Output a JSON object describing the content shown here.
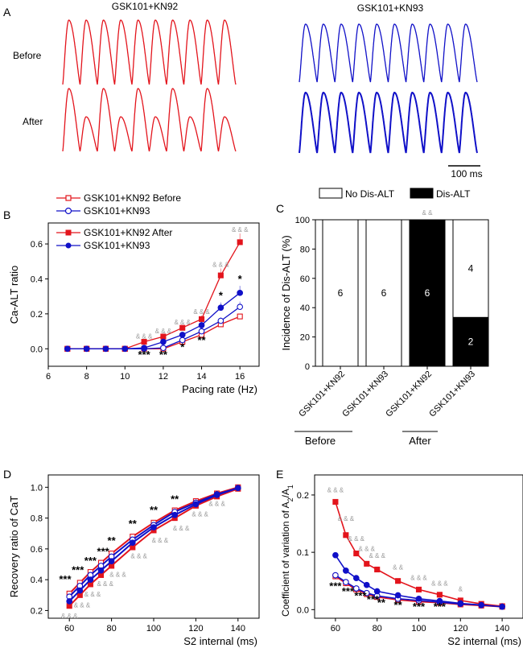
{
  "colors": {
    "red": "#e3141c",
    "blue": "#1010c8",
    "black": "#000000",
    "gray": "#9a9a9a"
  },
  "panels": {
    "a": "A",
    "b": "B",
    "c": "C",
    "d": "D",
    "e": "E"
  },
  "panel_a": {
    "col_red": "GSK101+KN92",
    "col_blue": "GSK101+KN93",
    "row_before": "Before",
    "row_after": "After",
    "scale_label": "100 ms"
  },
  "chart_data": [
    {
      "id": "B",
      "type": "line",
      "xlabel": "Pacing rate (Hz)",
      "ylabel": "Ca-ALT ratio",
      "xlim": [
        6,
        17
      ],
      "ylim": [
        -0.1,
        0.72
      ],
      "xticks": [
        6,
        8,
        10,
        12,
        14,
        16
      ],
      "yticks": [
        0.0,
        0.2,
        0.4,
        0.6
      ],
      "x": [
        7,
        8,
        9,
        10,
        11,
        12,
        13,
        14,
        15,
        16
      ],
      "legend": {
        "group1": "GSK101+KN92 Before",
        "group1b": "GSK101+KN93",
        "group2": "GSK101+KN92 After",
        "group2b": "GSK101+KN93"
      },
      "series": [
        {
          "name": "GSK101+KN92 Before",
          "color": "red",
          "marker": "open-square",
          "values": [
            0,
            0,
            0,
            0,
            0,
            0,
            0.04,
            0.08,
            0.14,
            0.185
          ],
          "errors": [
            0,
            0,
            0,
            0,
            0,
            0,
            0.005,
            0.01,
            0.015,
            0.015
          ]
        },
        {
          "name": "GSK101+KN93",
          "color": "blue",
          "marker": "open-circle",
          "values": [
            0,
            0,
            0,
            0,
            0,
            0.005,
            0.05,
            0.1,
            0.16,
            0.24
          ],
          "errors": [
            0,
            0,
            0,
            0,
            0,
            0.004,
            0.01,
            0.015,
            0.02,
            0.03
          ]
        },
        {
          "name": "GSK101+KN92 After",
          "color": "red",
          "marker": "filled-square",
          "values": [
            0,
            0,
            0,
            0,
            0.04,
            0.07,
            0.12,
            0.17,
            0.42,
            0.61
          ],
          "errors": [
            0,
            0,
            0,
            0,
            0.01,
            0.01,
            0.015,
            0.02,
            0.04,
            0.05
          ]
        },
        {
          "name": "GSK101+KN93",
          "color": "blue",
          "marker": "filled-circle",
          "values": [
            0,
            0,
            0,
            0,
            0.005,
            0.04,
            0.08,
            0.135,
            0.235,
            0.32
          ],
          "errors": [
            0,
            0,
            0,
            0,
            0.004,
            0.01,
            0.015,
            0.02,
            0.03,
            0.04
          ]
        }
      ],
      "annotations": [
        {
          "text": "&&&",
          "x": 11,
          "y": 0.06
        },
        {
          "text": "&&&",
          "x": 12,
          "y": 0.09
        },
        {
          "text": "&&&",
          "x": 13,
          "y": 0.14
        },
        {
          "text": "&&&",
          "x": 14,
          "y": 0.2
        },
        {
          "text": "&&&",
          "x": 15,
          "y": 0.47
        },
        {
          "text": "&&&",
          "x": 16,
          "y": 0.67
        },
        {
          "text": "***",
          "x": 11,
          "y": -0.055
        },
        {
          "text": "**",
          "x": 12,
          "y": -0.055
        },
        {
          "text": "*",
          "x": 13,
          "y": -0.01
        },
        {
          "text": "**",
          "x": 14,
          "y": 0.03
        },
        {
          "text": "*",
          "x": 15,
          "y": 0.285
        },
        {
          "text": "*",
          "x": 16,
          "y": 0.38
        }
      ]
    },
    {
      "id": "C",
      "type": "bar",
      "ylabel": "Incidence of Dis-ALT (%)",
      "ylim": [
        0,
        100
      ],
      "yticks": [
        0,
        20,
        40,
        60,
        80,
        100
      ],
      "categories": [
        "GSK101+KN92",
        "GSK101+KN93",
        "GSK101+KN92",
        "GSK101+KN93"
      ],
      "groups": [
        "Before",
        "After"
      ],
      "legend": {
        "no": "No Dis-ALT",
        "yes": "Dis-ALT"
      },
      "dis_alt_percent": [
        0,
        0,
        100,
        33.3
      ],
      "count_labels": [
        "6",
        "6",
        "6",
        "4",
        "2"
      ],
      "significance": "&&"
    },
    {
      "id": "D",
      "type": "line",
      "xlabel": "S2 internal (ms)",
      "ylabel": "Recovery ratio of CaT",
      "xlim": [
        50,
        150
      ],
      "ylim": [
        0.15,
        1.08
      ],
      "xticks": [
        60,
        80,
        100,
        120,
        140
      ],
      "yticks": [
        0.2,
        0.4,
        0.6,
        0.8,
        1.0
      ],
      "x": [
        60,
        65,
        70,
        75,
        80,
        90,
        100,
        110,
        120,
        130,
        140
      ],
      "series": [
        {
          "name": "GSK101+KN92 Before",
          "color": "red",
          "marker": "open-square",
          "values": [
            0.31,
            0.38,
            0.45,
            0.51,
            0.57,
            0.68,
            0.77,
            0.85,
            0.91,
            0.96,
            1.0
          ]
        },
        {
          "name": "GSK101+KN93 Before",
          "color": "blue",
          "marker": "open-circle",
          "values": [
            0.29,
            0.36,
            0.43,
            0.49,
            0.55,
            0.66,
            0.755,
            0.84,
            0.9,
            0.955,
            0.995
          ]
        },
        {
          "name": "GSK101+KN92 After",
          "color": "red",
          "marker": "filled-square",
          "values": [
            0.23,
            0.3,
            0.37,
            0.43,
            0.49,
            0.61,
            0.72,
            0.8,
            0.88,
            0.94,
            0.99
          ]
        },
        {
          "name": "GSK101+KN93 After",
          "color": "blue",
          "marker": "filled-circle",
          "values": [
            0.26,
            0.33,
            0.4,
            0.46,
            0.52,
            0.64,
            0.74,
            0.82,
            0.89,
            0.95,
            0.995
          ]
        }
      ],
      "annotations": [
        {
          "text": "***",
          "x": 58,
          "y": 0.38
        },
        {
          "text": "***",
          "x": 64,
          "y": 0.44
        },
        {
          "text": "***",
          "x": 70,
          "y": 0.5
        },
        {
          "text": "***",
          "x": 76,
          "y": 0.56
        },
        {
          "text": "**",
          "x": 80,
          "y": 0.63
        },
        {
          "text": "**",
          "x": 90,
          "y": 0.74
        },
        {
          "text": "**",
          "x": 100,
          "y": 0.83
        },
        {
          "text": "**",
          "x": 110,
          "y": 0.9
        },
        {
          "text": "&&&",
          "x": 60,
          "y": 0.15
        },
        {
          "text": "&&&",
          "x": 66,
          "y": 0.22
        },
        {
          "text": "&&&",
          "x": 71,
          "y": 0.29
        },
        {
          "text": "&&&",
          "x": 77,
          "y": 0.36
        },
        {
          "text": "&&&",
          "x": 83,
          "y": 0.42
        },
        {
          "text": "&&&",
          "x": 93,
          "y": 0.54
        },
        {
          "text": "&&&",
          "x": 103,
          "y": 0.64
        },
        {
          "text": "&&&",
          "x": 113,
          "y": 0.72
        },
        {
          "text": "&&&",
          "x": 122,
          "y": 0.81
        },
        {
          "text": "&&&",
          "x": 130,
          "y": 0.88
        }
      ]
    },
    {
      "id": "E",
      "type": "line",
      "xlabel": "S2 internal (ms)",
      "ylabel": "Coefficient of variation of A2/A1",
      "ylabel_main": "Coefficient of variation of A",
      "ylabel_sub1": "2",
      "ylabel_slash": "/A",
      "ylabel_sub2": "1",
      "xlim": [
        50,
        150
      ],
      "ylim": [
        -0.015,
        0.235
      ],
      "xticks": [
        60,
        80,
        100,
        120,
        140
      ],
      "yticks": [
        0.0,
        0.1,
        0.2
      ],
      "x": [
        60,
        65,
        70,
        75,
        80,
        90,
        100,
        110,
        120,
        130,
        140
      ],
      "series": [
        {
          "name": "GSK101+KN92 Before",
          "color": "red",
          "marker": "open-square",
          "values": [
            0.058,
            0.046,
            0.035,
            0.027,
            0.022,
            0.017,
            0.014,
            0.012,
            0.009,
            0.007,
            0.005
          ]
        },
        {
          "name": "GSK101+KN93 Before",
          "color": "blue",
          "marker": "open-circle",
          "values": [
            0.06,
            0.048,
            0.037,
            0.029,
            0.024,
            0.019,
            0.016,
            0.013,
            0.01,
            0.008,
            0.006
          ]
        },
        {
          "name": "GSK101+KN92 After",
          "color": "red",
          "marker": "filled-square",
          "values": [
            0.188,
            0.13,
            0.098,
            0.08,
            0.07,
            0.05,
            0.035,
            0.026,
            0.016,
            0.01,
            0.006
          ]
        },
        {
          "name": "GSK101+KN93 After",
          "color": "blue",
          "marker": "filled-circle",
          "values": [
            0.095,
            0.068,
            0.055,
            0.043,
            0.032,
            0.025,
            0.019,
            0.015,
            0.011,
            0.008,
            0.005
          ]
        }
      ],
      "annotations": [
        {
          "text": "&&&",
          "x": 60,
          "y": 0.205
        },
        {
          "text": "&&&",
          "x": 65,
          "y": 0.155
        },
        {
          "text": "&&&",
          "x": 70,
          "y": 0.12
        },
        {
          "text": "&&&",
          "x": 75,
          "y": 0.102
        },
        {
          "text": "&&&",
          "x": 80,
          "y": 0.09
        },
        {
          "text": "&&",
          "x": 90,
          "y": 0.07
        },
        {
          "text": "&&&",
          "x": 100,
          "y": 0.052
        },
        {
          "text": "&&&",
          "x": 110,
          "y": 0.042
        },
        {
          "text": "&",
          "x": 120,
          "y": 0.032
        },
        {
          "text": "***",
          "x": 60,
          "y": 0.035
        },
        {
          "text": "***",
          "x": 66,
          "y": 0.026
        },
        {
          "text": "***",
          "x": 72,
          "y": 0.018
        },
        {
          "text": "***",
          "x": 78,
          "y": 0.012
        },
        {
          "text": "**",
          "x": 82,
          "y": 0.006
        },
        {
          "text": "**",
          "x": 90,
          "y": 0.002
        },
        {
          "text": "***",
          "x": 100,
          "y": -0.001
        },
        {
          "text": "***",
          "x": 110,
          "y": -0.001
        }
      ]
    }
  ]
}
